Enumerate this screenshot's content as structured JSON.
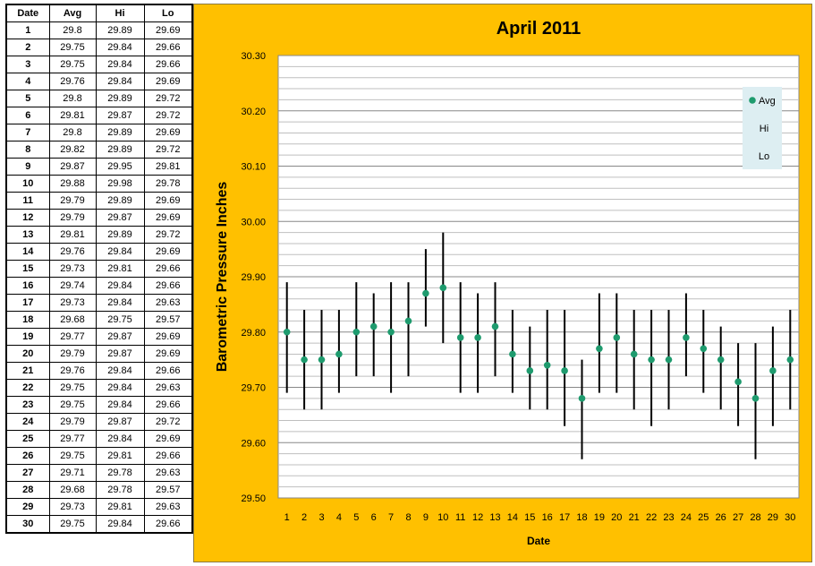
{
  "table": {
    "headers": [
      "Date",
      "Avg",
      "Hi",
      "Lo"
    ],
    "rows": [
      [
        "1",
        "29.8",
        "29.89",
        "29.69"
      ],
      [
        "2",
        "29.75",
        "29.84",
        "29.66"
      ],
      [
        "3",
        "29.75",
        "29.84",
        "29.66"
      ],
      [
        "4",
        "29.76",
        "29.84",
        "29.69"
      ],
      [
        "5",
        "29.8",
        "29.89",
        "29.72"
      ],
      [
        "6",
        "29.81",
        "29.87",
        "29.72"
      ],
      [
        "7",
        "29.8",
        "29.89",
        "29.69"
      ],
      [
        "8",
        "29.82",
        "29.89",
        "29.72"
      ],
      [
        "9",
        "29.87",
        "29.95",
        "29.81"
      ],
      [
        "10",
        "29.88",
        "29.98",
        "29.78"
      ],
      [
        "11",
        "29.79",
        "29.89",
        "29.69"
      ],
      [
        "12",
        "29.79",
        "29.87",
        "29.69"
      ],
      [
        "13",
        "29.81",
        "29.89",
        "29.72"
      ],
      [
        "14",
        "29.76",
        "29.84",
        "29.69"
      ],
      [
        "15",
        "29.73",
        "29.81",
        "29.66"
      ],
      [
        "16",
        "29.74",
        "29.84",
        "29.66"
      ],
      [
        "17",
        "29.73",
        "29.84",
        "29.63"
      ],
      [
        "18",
        "29.68",
        "29.75",
        "29.57"
      ],
      [
        "19",
        "29.77",
        "29.87",
        "29.69"
      ],
      [
        "20",
        "29.79",
        "29.87",
        "29.69"
      ],
      [
        "21",
        "29.76",
        "29.84",
        "29.66"
      ],
      [
        "22",
        "29.75",
        "29.84",
        "29.63"
      ],
      [
        "23",
        "29.75",
        "29.84",
        "29.66"
      ],
      [
        "24",
        "29.79",
        "29.87",
        "29.72"
      ],
      [
        "25",
        "29.77",
        "29.84",
        "29.69"
      ],
      [
        "26",
        "29.75",
        "29.81",
        "29.66"
      ],
      [
        "27",
        "29.71",
        "29.78",
        "29.63"
      ],
      [
        "28",
        "29.68",
        "29.78",
        "29.57"
      ],
      [
        "29",
        "29.73",
        "29.81",
        "29.63"
      ],
      [
        "30",
        "29.75",
        "29.84",
        "29.66"
      ]
    ]
  },
  "chart_data": {
    "type": "scatter",
    "title": "April 2011",
    "xlabel": "Date",
    "ylabel": "Barometric Pressure Inches",
    "ylim": [
      29.5,
      30.3
    ],
    "yticks": [
      "29.50",
      "29.60",
      "29.70",
      "29.80",
      "29.90",
      "30.00",
      "30.10",
      "30.20",
      "30.30"
    ],
    "x": [
      1,
      2,
      3,
      4,
      5,
      6,
      7,
      8,
      9,
      10,
      11,
      12,
      13,
      14,
      15,
      16,
      17,
      18,
      19,
      20,
      21,
      22,
      23,
      24,
      25,
      26,
      27,
      28,
      29,
      30
    ],
    "series": [
      {
        "name": "Avg",
        "values": [
          29.8,
          29.75,
          29.75,
          29.76,
          29.8,
          29.81,
          29.8,
          29.82,
          29.87,
          29.88,
          29.79,
          29.79,
          29.81,
          29.76,
          29.73,
          29.74,
          29.73,
          29.68,
          29.77,
          29.79,
          29.76,
          29.75,
          29.75,
          29.79,
          29.77,
          29.75,
          29.71,
          29.68,
          29.73,
          29.75
        ]
      },
      {
        "name": "Hi",
        "values": [
          29.89,
          29.84,
          29.84,
          29.84,
          29.89,
          29.87,
          29.89,
          29.89,
          29.95,
          29.98,
          29.89,
          29.87,
          29.89,
          29.84,
          29.81,
          29.84,
          29.84,
          29.75,
          29.87,
          29.87,
          29.84,
          29.84,
          29.84,
          29.87,
          29.84,
          29.81,
          29.78,
          29.78,
          29.81,
          29.84
        ]
      },
      {
        "name": "Lo",
        "values": [
          29.69,
          29.66,
          29.66,
          29.69,
          29.72,
          29.72,
          29.69,
          29.72,
          29.81,
          29.78,
          29.69,
          29.69,
          29.72,
          29.69,
          29.66,
          29.66,
          29.63,
          29.57,
          29.69,
          29.69,
          29.66,
          29.63,
          29.66,
          29.72,
          29.69,
          29.66,
          29.63,
          29.57,
          29.63,
          29.66
        ]
      }
    ],
    "grid": true,
    "legend": "top-right",
    "colors": {
      "panel": "#ffc000",
      "avg_marker": "#1e9b6e",
      "range_line": "#000000",
      "legend_bg": "#ddeef2"
    }
  }
}
